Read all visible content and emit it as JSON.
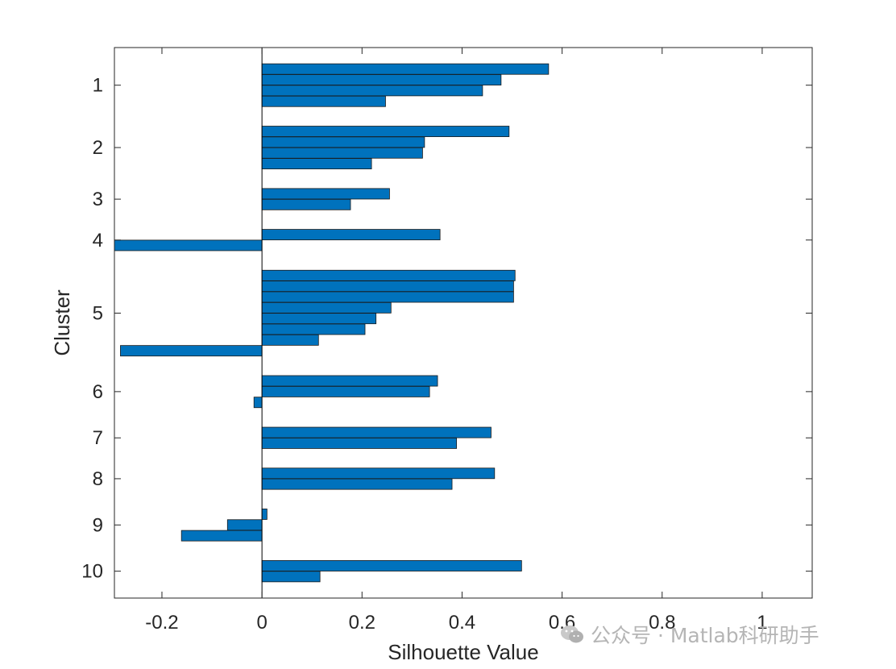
{
  "chart_data": {
    "type": "bar",
    "orientation": "horizontal",
    "xlabel": "Silhouette Value",
    "ylabel": "Cluster",
    "xlim": [
      -0.295,
      1.1
    ],
    "xticks": [
      -0.2,
      0,
      0.2,
      0.4,
      0.6,
      0.8,
      1
    ],
    "xtick_labels": [
      "-0.2",
      "0",
      "0.2",
      "0.4",
      "0.6",
      "0.8",
      "1"
    ],
    "grid": false,
    "bar_color": "#0072BD",
    "bar_edge_color": "#1a1a1a",
    "clusters": [
      {
        "label": "1",
        "values": [
          0.573,
          0.478,
          0.441,
          0.247
        ]
      },
      {
        "label": "2",
        "values": [
          0.494,
          0.325,
          0.321,
          0.219
        ]
      },
      {
        "label": "3",
        "values": [
          0.255,
          0.177
        ]
      },
      {
        "label": "4",
        "values": [
          0.356,
          -0.295
        ]
      },
      {
        "label": "5",
        "values": [
          0.506,
          0.503,
          0.503,
          0.258,
          0.228,
          0.206,
          0.113,
          -0.283
        ]
      },
      {
        "label": "6",
        "values": [
          0.351,
          0.335,
          -0.016
        ]
      },
      {
        "label": "7",
        "values": [
          0.458,
          0.389
        ]
      },
      {
        "label": "8",
        "values": [
          0.465,
          0.38
        ]
      },
      {
        "label": "9",
        "values": [
          0.01,
          -0.069,
          -0.161
        ]
      },
      {
        "label": "10",
        "values": [
          0.519,
          0.116
        ]
      }
    ]
  },
  "watermark": {
    "icon": "wechat-icon",
    "text": "公众号 · Matlab科研助手"
  }
}
